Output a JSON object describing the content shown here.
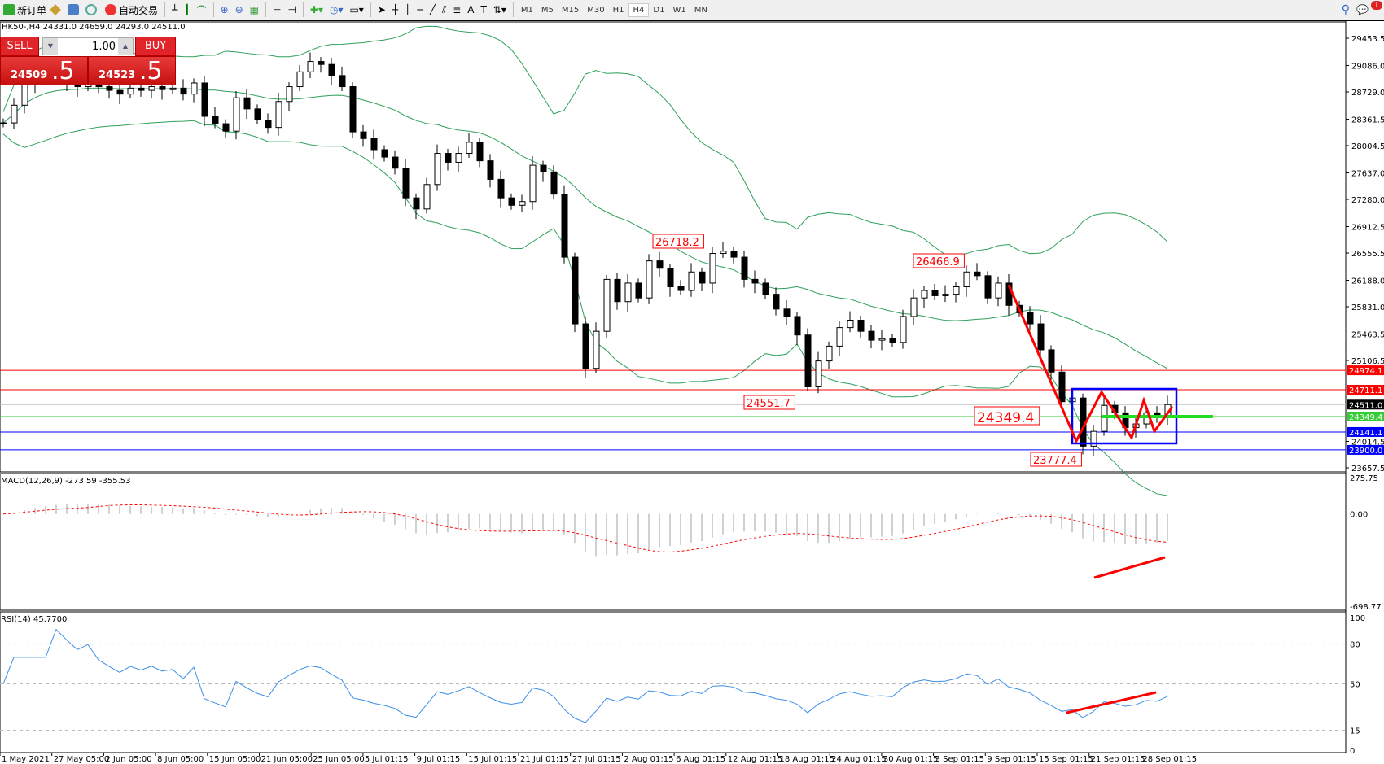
{
  "toolbar": {
    "new_order": "新订单",
    "auto_trading": "自动交易",
    "timeframes": [
      "M1",
      "M5",
      "M15",
      "M30",
      "H1",
      "H4",
      "D1",
      "W1",
      "MN"
    ],
    "selected_timeframe": "H4",
    "notification_count": "1"
  },
  "header": {
    "text": "HK50-,H4  24331.0 24659.0 24293.0 24511.0"
  },
  "one_click": {
    "sell": "SELL",
    "buy": "BUY",
    "lots": "1.00",
    "sell_price_main": "24509",
    "sell_price_big": ".5",
    "buy_price_main": "24523",
    "buy_price_big": ".5"
  },
  "price_axis": [
    "29453.5",
    "29086.0",
    "28729.0",
    "28361.5",
    "28004.5",
    "27637.0",
    "27280.0",
    "26912.5",
    "26555.5",
    "26188.0",
    "25831.0",
    "25463.5",
    "25106.5",
    "24014.5",
    "23657.5"
  ],
  "hlines": [
    {
      "value": 24974.1,
      "label": "24974.1",
      "color": "#ff0000"
    },
    {
      "value": 24711.1,
      "label": "24711.1",
      "color": "#ff0000"
    },
    {
      "value": 24511.0,
      "label": "24511.0",
      "color": "#c0c0c0",
      "tag": "#000000"
    },
    {
      "value": 24349.4,
      "label": "24349.4",
      "color": "#32cd32"
    },
    {
      "value": 24141.1,
      "label": "24141.1",
      "color": "#0000ff"
    },
    {
      "value": 23900.0,
      "label": "23900.0",
      "color": "#0000ff"
    }
  ],
  "annotations": [
    "26718.2",
    "26466.9",
    "24551.7",
    "24349.4",
    "23777.4"
  ],
  "macd": {
    "label": "MACD(12,26,9) -273.59 -355.53",
    "axis": [
      "275.75",
      "0.00",
      "-698.77"
    ]
  },
  "rsi": {
    "label": "RSI(14) 45.7700",
    "axis": [
      "100",
      "80",
      "50",
      "15",
      "0"
    ]
  },
  "time_axis": [
    "1 May 2021",
    "27 May 05:00",
    "2 Jun 05:00",
    "8 Jun 05:00",
    "15 Jun 05:00",
    "21 Jun 05:00",
    "25 Jun 05:00",
    "5 Jul 01:15",
    "9 Jul 01:15",
    "15 Jul 01:15",
    "21 Jul 01:15",
    "27 Jul 01:15",
    "2 Aug 01:15",
    "6 Aug 01:15",
    "12 Aug 01:15",
    "18 Aug 01:15",
    "24 Aug 01:15",
    "30 Aug 01:15",
    "3 Sep 01:15",
    "9 Sep 01:15",
    "15 Sep 01:15",
    "21 Sep 01:15",
    "28 Sep 01:15"
  ],
  "chart_data": {
    "type": "candlestick",
    "symbol": "HK50-",
    "timeframe": "H4",
    "ylim": [
      23657.5,
      29453.5
    ],
    "closes": [
      28311,
      28550,
      28850,
      28900,
      28950,
      28900,
      28850,
      28800,
      28900,
      28800,
      28750,
      28700,
      28780,
      28750,
      28800,
      28760,
      28780,
      28700,
      28850,
      28400,
      28300,
      28200,
      28650,
      28500,
      28350,
      28250,
      28600,
      28800,
      29000,
      29140,
      29100,
      28950,
      28800,
      28190,
      28100,
      27950,
      27850,
      27700,
      27300,
      27150,
      27480,
      27900,
      27780,
      27900,
      28050,
      27800,
      27550,
      27300,
      27200,
      27250,
      27740,
      27650,
      27350,
      26500,
      25600,
      25000,
      25500,
      26200,
      25900,
      26150,
      25950,
      26450,
      26350,
      26100,
      26050,
      26300,
      26150,
      26550,
      26580,
      26500,
      26200,
      26150,
      26000,
      25800,
      25700,
      25450,
      24750,
      25100,
      25300,
      25550,
      25650,
      25500,
      25380,
      25400,
      25350,
      25700,
      25950,
      26050,
      25980,
      26000,
      26100,
      26300,
      26250,
      25950,
      26150,
      25850,
      25750,
      25600,
      25250,
      24950,
      24550,
      24600,
      23950,
      24150,
      24500,
      24400,
      24200,
      24250,
      24400,
      24350,
      24511
    ],
    "indicators": [
      "Bollinger Bands",
      "MACD(12,26,9)",
      "RSI(14)"
    ]
  },
  "colors": {
    "bands": "#2ea05a",
    "macd_signal": "#ff0000",
    "macd_hist": "#c0c0c0",
    "rsi": "#3c8ee8",
    "annotation": "#ff0000",
    "box": "#0000ff"
  }
}
